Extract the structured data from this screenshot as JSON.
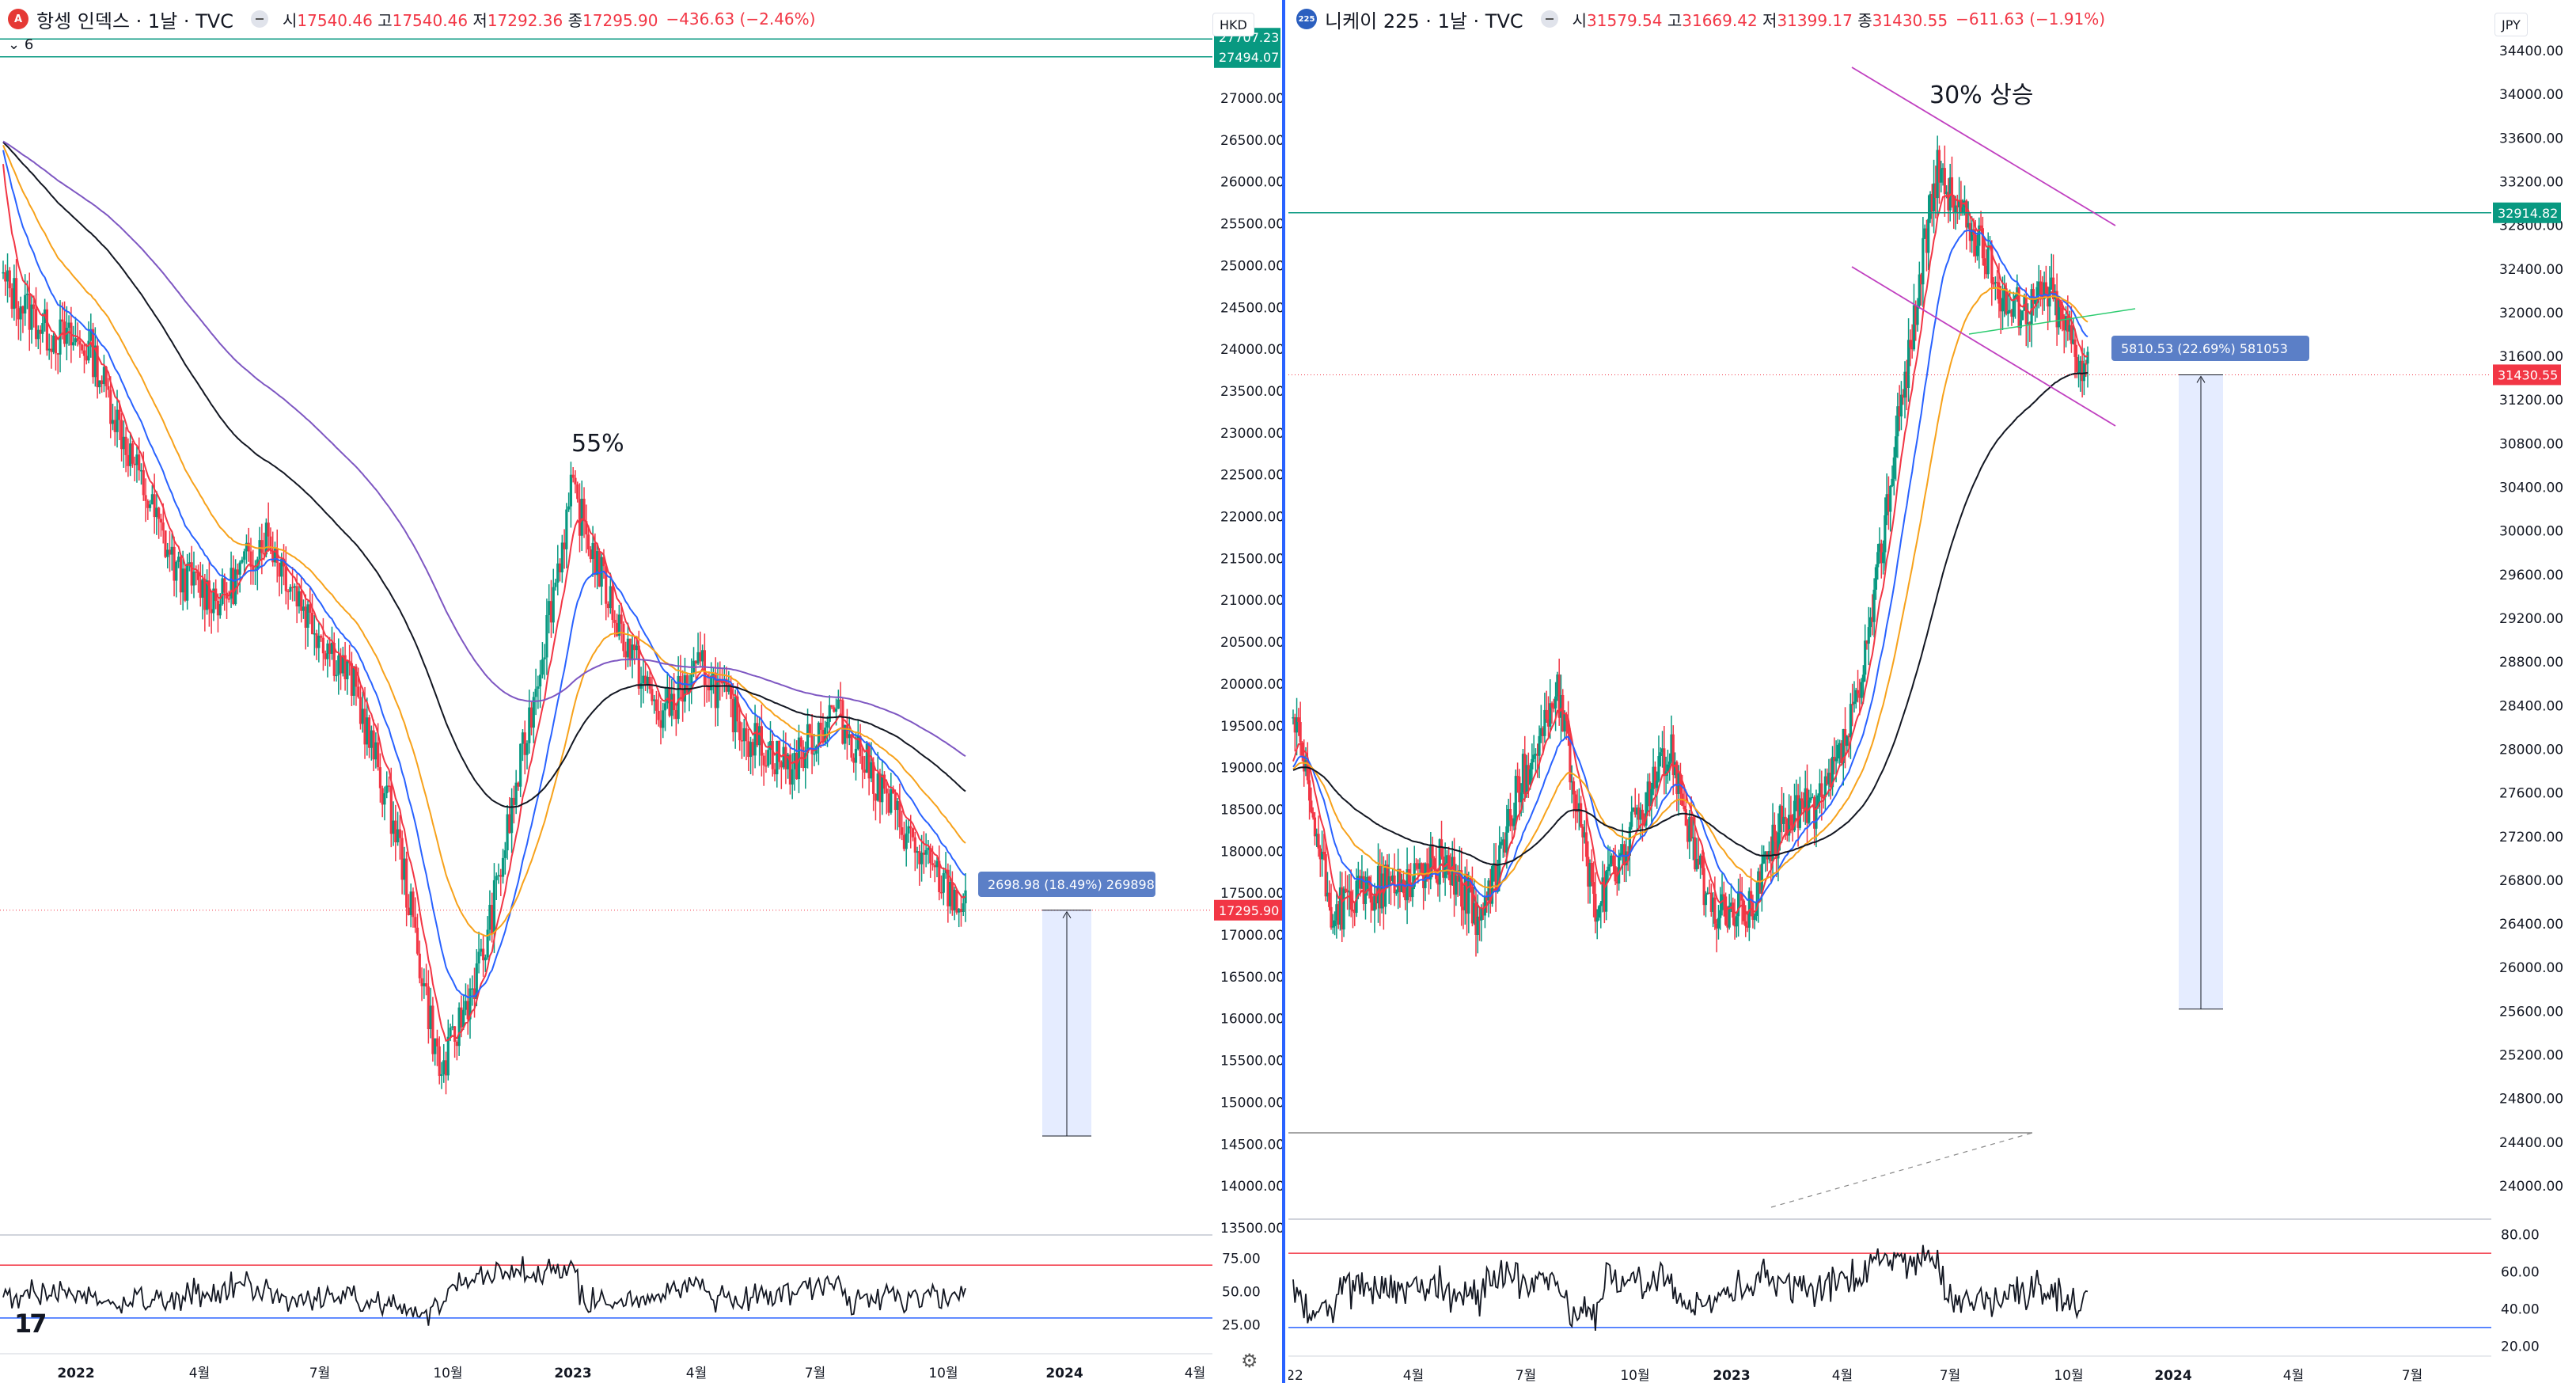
{
  "left": {
    "header": {
      "icon_text": "A",
      "title": "항셍 인덱스 · 1날 · TVC",
      "o_label": "시",
      "o": "17540.46",
      "h_label": "고",
      "h": "17540.46",
      "l_label": "저",
      "l": "17292.36",
      "c_label": "종",
      "c": "17295.90",
      "change": "−436.63 (−2.46%)"
    },
    "collapse_label": "6",
    "currency": "HKD",
    "price_ticks": [
      "27000.00",
      "26500.00",
      "26000.00",
      "25500.00",
      "25000.00",
      "24500.00",
      "24000.00",
      "23500.00",
      "23000.00",
      "22500.00",
      "22000.00",
      "21500.00",
      "21000.00",
      "20500.00",
      "20000.00",
      "19500.00",
      "19000.00",
      "18500.00",
      "18000.00",
      "17500.00",
      "17000.00",
      "16500.00",
      "16000.00",
      "15500.00",
      "15000.00",
      "14500.00",
      "14000.00",
      "13500.00"
    ],
    "level_labels": [
      "27707.23",
      "27494.07"
    ],
    "last_price": "17295.90",
    "annotation": "55%",
    "measure_label": "2698.98 (18.49%) 269898",
    "rsi_ticks": [
      "75.00",
      "50.00",
      "25.00"
    ],
    "time_ticks": [
      "2022",
      "4월",
      "7월",
      "10월",
      "2023",
      "4월",
      "7월",
      "10월",
      "2024",
      "4월"
    ],
    "colors": {
      "last": "#f23645",
      "level": "#089981",
      "measure": "#5b7fc7"
    }
  },
  "right": {
    "header": {
      "icon_text": "225",
      "title": "니케이 225 · 1날 · TVC",
      "o_label": "시",
      "o": "31579.54",
      "h_label": "고",
      "h": "31669.42",
      "l_label": "저",
      "l": "31399.17",
      "c_label": "종",
      "c": "31430.55",
      "change": "−611.63 (−1.91%)"
    },
    "currency": "JPY",
    "price_ticks": [
      "34400.00",
      "34000.00",
      "33600.00",
      "33200.00",
      "32800.00",
      "32400.00",
      "32000.00",
      "31600.00",
      "31200.00",
      "30800.00",
      "30400.00",
      "30000.00",
      "29600.00",
      "29200.00",
      "28800.00",
      "28400.00",
      "28000.00",
      "27600.00",
      "27200.00",
      "26800.00",
      "26400.00",
      "26000.00",
      "25600.00",
      "25200.00",
      "24800.00",
      "24400.00",
      "24000.00"
    ],
    "level_label": "32914.82",
    "last_price": "31430.55",
    "annotation": "30% 상승",
    "measure_label": "5810.53 (22.69%) 581053",
    "rsi_ticks": [
      "80.00",
      "60.00",
      "40.00",
      "20.00"
    ],
    "time_ticks": [
      "22",
      "4월",
      "7월",
      "10월",
      "2023",
      "4월",
      "7월",
      "10월",
      "2024",
      "4월",
      "7월"
    ]
  },
  "chart_data": [
    {
      "type": "candlestick",
      "title": "항셍 인덱스 · 1날 · TVC",
      "currency": "HKD",
      "ylim": [
        13300,
        27900
      ],
      "x": [
        "2021-12",
        "2022-01",
        "2022-02",
        "2022-03",
        "2022-04",
        "2022-05",
        "2022-06",
        "2022-07",
        "2022-08",
        "2022-09",
        "2022-10",
        "2022-11",
        "2022-12",
        "2023-01",
        "2023-02",
        "2023-03",
        "2023-04",
        "2023-05",
        "2023-06",
        "2023-07",
        "2023-08",
        "2023-09",
        "2023-10"
      ],
      "series": [
        {
          "values": [
            24800,
            24200,
            24000,
            22600,
            21300,
            21000,
            21800,
            20800,
            20000,
            18200,
            15300,
            16800,
            19500,
            22300,
            20800,
            19600,
            20200,
            19400,
            19000,
            19700,
            18800,
            17900,
            17296
          ]
        }
      ],
      "horizontal_levels": [
        27707.23,
        27494.07
      ],
      "last": 17295.9,
      "annotation": "55%",
      "measure": {
        "label": "2698.98 (18.49%) 269898"
      },
      "rsi": {
        "ylim": [
          12,
          88
        ],
        "bands": [
          70,
          30
        ]
      }
    },
    {
      "type": "candlestick",
      "title": "니케이 225 · 1날 · TVC",
      "currency": "JPY",
      "ylim": [
        23600,
        34700
      ],
      "x": [
        "2022-01",
        "2022-02",
        "2022-03",
        "2022-04",
        "2022-05",
        "2022-06",
        "2022-07",
        "2022-08",
        "2022-09",
        "2022-10",
        "2022-11",
        "2022-12",
        "2023-01",
        "2023-02",
        "2023-03",
        "2023-04",
        "2023-05",
        "2023-06",
        "2023-07",
        "2023-08",
        "2023-09",
        "2023-10"
      ],
      "series": [
        {
          "values": [
            28300,
            26500,
            26700,
            26800,
            27000,
            26400,
            27700,
            28500,
            26500,
            27300,
            28000,
            26500,
            26500,
            27400,
            27500,
            28500,
            31000,
            33300,
            32700,
            32000,
            32200,
            31431
          ]
        }
      ],
      "horizontal_levels": [
        32914.82
      ],
      "last": 31430.55,
      "annotation": "30% 상승",
      "measure": {
        "label": "5810.53 (22.69%) 581053"
      },
      "rsi": {
        "ylim": [
          18,
          85
        ],
        "bands": [
          70,
          30
        ]
      }
    }
  ]
}
